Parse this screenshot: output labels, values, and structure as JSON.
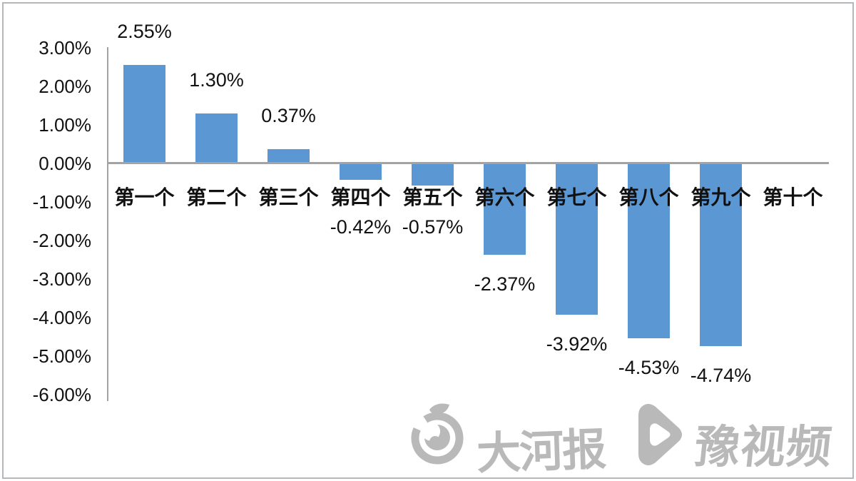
{
  "chart_data": {
    "type": "bar",
    "title": "",
    "xlabel": "",
    "ylabel": "",
    "categories": [
      "第一个",
      "第二个",
      "第三个",
      "第四个",
      "第五个",
      "第六个",
      "第七个",
      "第八个",
      "第九个",
      "第十个"
    ],
    "values": [
      2.55,
      1.3,
      0.37,
      -0.42,
      -0.57,
      -2.37,
      -3.92,
      -4.53,
      -4.74,
      null
    ],
    "data_labels": [
      "2.55%",
      "1.30%",
      "0.37%",
      "-0.42%",
      "-0.57%",
      "-2.37%",
      "-3.92%",
      "-4.53%",
      "-4.74%",
      ""
    ],
    "yticks": [
      {
        "value": 3,
        "label": "3.00%"
      },
      {
        "value": 2,
        "label": "2.00%"
      },
      {
        "value": 1,
        "label": "1.00%"
      },
      {
        "value": 0,
        "label": "0.00%"
      },
      {
        "value": -1,
        "label": "-1.00%"
      },
      {
        "value": -2,
        "label": "-2.00%"
      },
      {
        "value": -3,
        "label": "-3.00%"
      },
      {
        "value": -4,
        "label": "-4.00%"
      },
      {
        "value": -5,
        "label": "-5.00%"
      },
      {
        "value": -6,
        "label": "-6.00%"
      }
    ],
    "ylim": [
      -6,
      3
    ],
    "grid": false,
    "legend": false,
    "bar_color": "#5b97d3",
    "axis_color": "#a3a3a3",
    "label_color": "#111111"
  },
  "watermark": {
    "color": "#b9b9b9",
    "dahe_logo_icon": "dahe-daily-swirl-logo",
    "dahe_text": "大河报",
    "play_icon": "play-triangle-logo",
    "yu_text": "豫视频"
  },
  "frame": {
    "border_color": "#b5b8ba"
  }
}
